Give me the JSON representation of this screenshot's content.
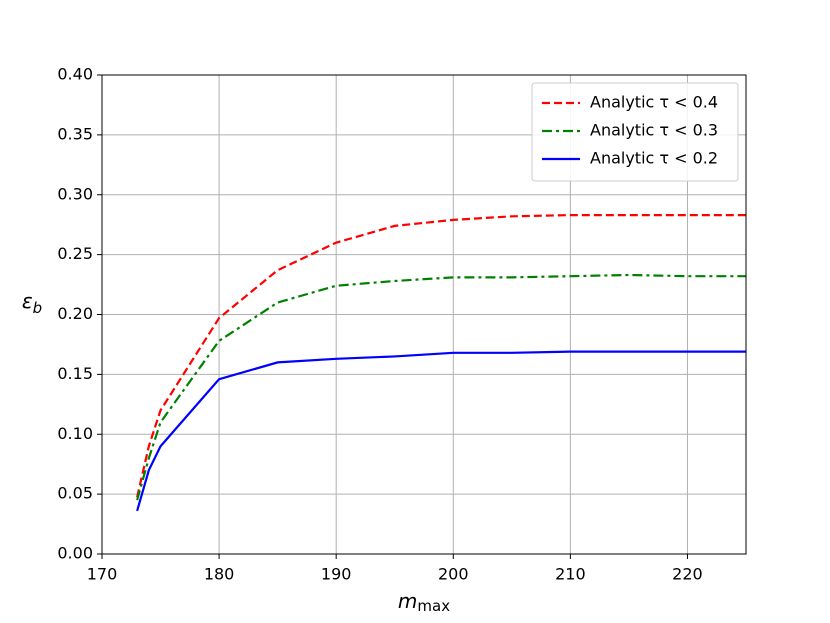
{
  "chart_data": {
    "type": "line",
    "xlabel": {
      "main": "m",
      "sub": "max"
    },
    "ylabel": {
      "main": "ε",
      "sub": "b"
    },
    "x": [
      173,
      174,
      175,
      180,
      185,
      190,
      195,
      200,
      205,
      210,
      215,
      220,
      225
    ],
    "series": [
      {
        "name": "Analytic τ < 0.4",
        "color": "#ff0000",
        "linestyle": "dashed",
        "values": [
          0.0475,
          0.09,
          0.12,
          0.197,
          0.237,
          0.26,
          0.274,
          0.279,
          0.282,
          0.283,
          0.283,
          0.283,
          0.283
        ]
      },
      {
        "name": "Analytic τ < 0.3",
        "color": "#008000",
        "linestyle": "dashdot",
        "values": [
          0.045,
          0.08,
          0.11,
          0.178,
          0.21,
          0.224,
          0.228,
          0.231,
          0.231,
          0.232,
          0.233,
          0.232,
          0.232
        ]
      },
      {
        "name": "Analytic τ < 0.2",
        "color": "#0000ff",
        "linestyle": "solid",
        "values": [
          0.036,
          0.07,
          0.09,
          0.146,
          0.16,
          0.163,
          0.165,
          0.168,
          0.168,
          0.169,
          0.169,
          0.169,
          0.169
        ]
      }
    ],
    "xlim": [
      170,
      225
    ],
    "ylim": [
      0,
      0.4
    ],
    "xticks": [
      170,
      180,
      190,
      200,
      210,
      220
    ],
    "yticks": [
      {
        "value": 0,
        "label": "0.00"
      },
      {
        "value": 0.05,
        "label": "0.05"
      },
      {
        "value": 0.1,
        "label": "0.10"
      },
      {
        "value": 0.15,
        "label": "0.15"
      },
      {
        "value": 0.2,
        "label": "0.20"
      },
      {
        "value": 0.25,
        "label": "0.25"
      },
      {
        "value": 0.3,
        "label": "0.30"
      },
      {
        "value": 0.35,
        "label": "0.35"
      },
      {
        "value": 0.4,
        "label": "0.40"
      }
    ],
    "grid": true,
    "legend": "upper right"
  }
}
